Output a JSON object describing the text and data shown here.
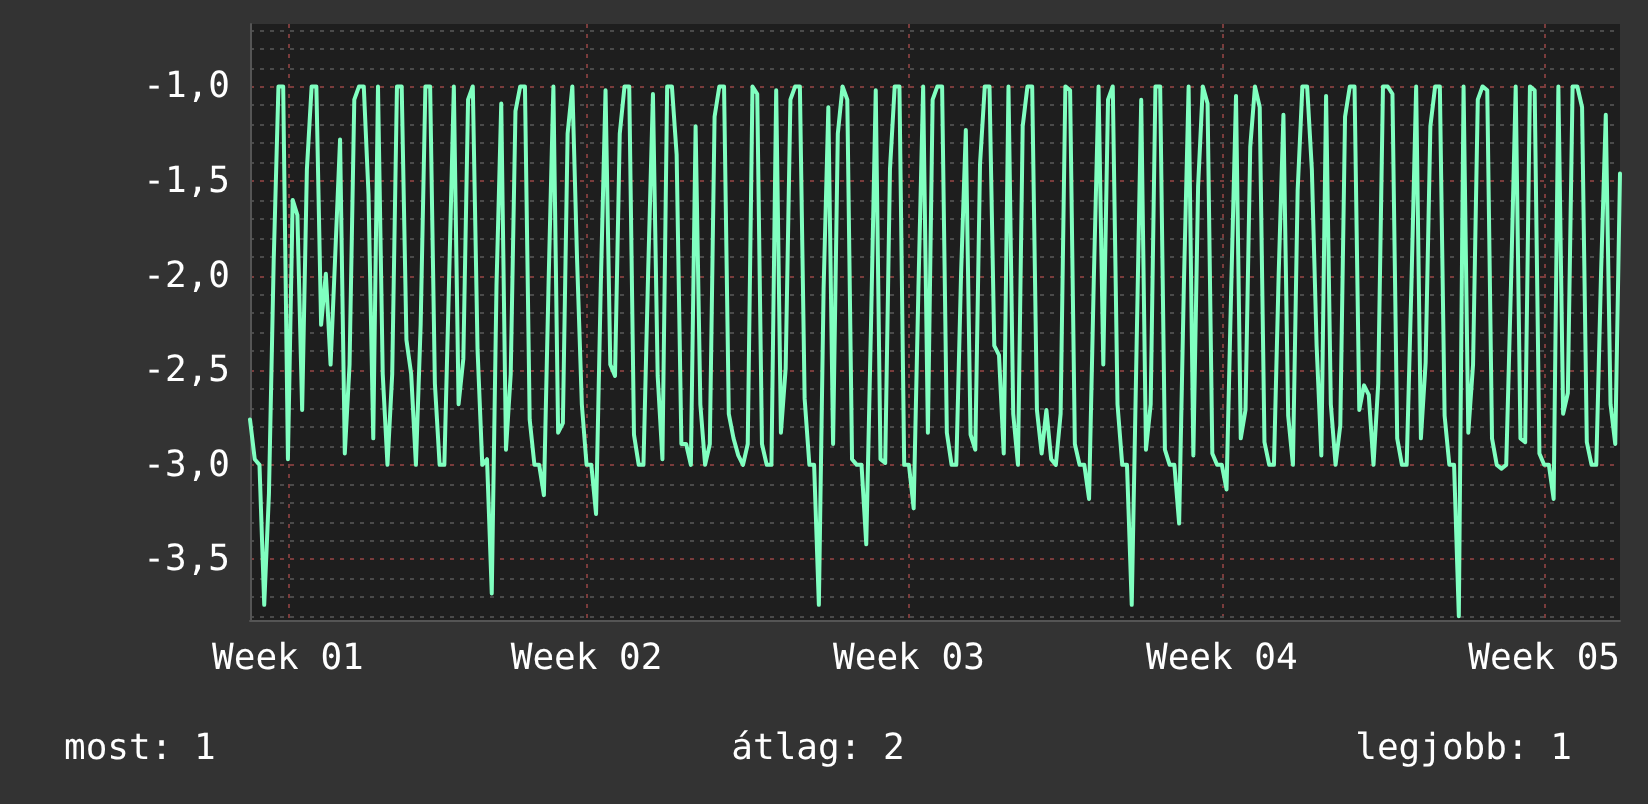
{
  "chart_data": {
    "type": "line",
    "color": "#80ffc0",
    "grid": true,
    "marker": "none",
    "line_style": "solid",
    "ylim": [
      -3.82,
      -0.67
    ],
    "yticks": [
      {
        "value": -3.8,
        "label": null
      },
      {
        "value": -3.7,
        "label": null
      },
      {
        "value": -3.6,
        "label": null
      },
      {
        "value": -3.5,
        "label": "-3,5"
      },
      {
        "value": -3.4,
        "label": null
      },
      {
        "value": -3.3,
        "label": null
      },
      {
        "value": -3.2,
        "label": null
      },
      {
        "value": -3.1,
        "label": null
      },
      {
        "value": -3.0,
        "label": "-3,0"
      },
      {
        "value": -2.9,
        "label": null
      },
      {
        "value": -2.8,
        "label": null
      },
      {
        "value": -2.7,
        "label": null
      },
      {
        "value": -2.6,
        "label": null
      },
      {
        "value": -2.5,
        "label": "-2,5"
      },
      {
        "value": -2.4,
        "label": null
      },
      {
        "value": -2.3,
        "label": null
      },
      {
        "value": -2.2,
        "label": null
      },
      {
        "value": -2.1,
        "label": null
      },
      {
        "value": -2.0,
        "label": "-2,0"
      },
      {
        "value": -1.9,
        "label": null
      },
      {
        "value": -1.8,
        "label": null
      },
      {
        "value": -1.7,
        "label": null
      },
      {
        "value": -1.6,
        "label": null
      },
      {
        "value": -1.5,
        "label": "-1,5"
      },
      {
        "value": -1.4,
        "label": null
      },
      {
        "value": -1.3,
        "label": null
      },
      {
        "value": -1.2,
        "label": null
      },
      {
        "value": -1.1,
        "label": null
      },
      {
        "value": -1.0,
        "label": "-1,0"
      },
      {
        "value": -0.9,
        "label": null
      },
      {
        "value": -0.8,
        "label": null
      },
      {
        "value": -0.7,
        "label": null
      }
    ],
    "annotations": [
      "most: 1",
      "átlag: 2",
      "legjobb: 1"
    ],
    "categories": [
      null,
      null,
      null,
      null,
      null,
      null,
      null,
      null,
      "Week 01",
      null,
      null,
      null,
      null,
      null,
      null,
      null,
      null,
      null,
      null,
      null,
      null,
      null,
      null,
      null,
      null,
      null,
      null,
      null,
      null,
      null,
      null,
      null,
      null,
      null,
      null,
      null,
      null,
      null,
      null,
      null,
      null,
      null,
      null,
      null,
      null,
      null,
      null,
      null,
      null,
      null,
      null,
      null,
      null,
      null,
      null,
      null,
      null,
      null,
      null,
      null,
      null,
      null,
      null,
      null,
      null,
      null,
      null,
      null,
      null,
      null,
      null,
      "Week 02",
      null,
      null,
      null,
      null,
      null,
      null,
      null,
      null,
      null,
      null,
      null,
      null,
      null,
      null,
      null,
      null,
      null,
      null,
      null,
      null,
      null,
      null,
      null,
      null,
      null,
      null,
      null,
      null,
      null,
      null,
      null,
      null,
      null,
      null,
      null,
      null,
      null,
      null,
      null,
      null,
      null,
      null,
      null,
      null,
      null,
      null,
      null,
      null,
      null,
      null,
      null,
      null,
      null,
      null,
      null,
      null,
      null,
      null,
      null,
      null,
      null,
      null,
      null,
      null,
      null,
      null,
      null,
      "Week 03",
      null,
      null,
      null,
      null,
      null,
      null,
      null,
      null,
      null,
      null,
      null,
      null,
      null,
      null,
      null,
      null,
      null,
      null,
      null,
      null,
      null,
      null,
      null,
      null,
      null,
      null,
      null,
      null,
      null,
      null,
      null,
      null,
      null,
      null,
      null,
      null,
      null,
      null,
      null,
      null,
      null,
      null,
      null,
      null,
      null,
      null,
      null,
      null,
      null,
      null,
      null,
      null,
      null,
      null,
      null,
      null,
      null,
      null,
      null,
      null,
      null,
      null,
      null,
      null,
      null,
      "Week 04",
      null,
      null,
      null,
      null,
      null,
      null,
      null,
      null,
      null,
      null,
      null,
      null,
      null,
      null,
      null,
      null,
      null,
      null,
      null,
      null,
      null,
      null,
      null,
      null,
      null,
      null,
      null,
      null,
      null,
      null,
      null,
      null,
      null,
      null,
      null,
      null,
      null,
      null,
      null,
      null,
      null,
      null,
      null,
      null,
      null,
      null,
      null,
      null,
      null,
      null,
      null,
      null,
      null,
      null,
      null,
      null,
      null,
      null,
      null,
      null,
      null,
      null,
      null,
      null,
      null,
      null,
      null,
      "Week 05",
      null,
      null,
      null,
      null,
      null,
      null,
      null,
      null,
      null,
      null,
      null,
      null,
      null,
      null,
      null,
      null
    ],
    "values": [
      -2.76,
      -2.97,
      -3.0,
      -3.74,
      -3.15,
      -1.92,
      -1.0,
      -1.0,
      -2.97,
      -1.6,
      -1.68,
      -2.71,
      -1.44,
      -1.0,
      -1.0,
      -2.26,
      -1.99,
      -2.47,
      -1.88,
      -1.28,
      -2.94,
      -2.47,
      -1.07,
      -1.0,
      -1.0,
      -1.57,
      -2.86,
      -1.0,
      -2.52,
      -3.0,
      -2.52,
      -1.0,
      -1.0,
      -2.34,
      -2.52,
      -3.0,
      -2.26,
      -1.0,
      -1.0,
      -2.57,
      -3.0,
      -3.0,
      -2.02,
      -1.0,
      -2.68,
      -2.44,
      -1.07,
      -1.0,
      -2.39,
      -3.0,
      -2.97,
      -3.68,
      -2.05,
      -1.09,
      -2.92,
      -2.52,
      -1.13,
      -1.0,
      -1.0,
      -2.76,
      -3.0,
      -3.0,
      -3.16,
      -2.02,
      -1.0,
      -2.83,
      -2.78,
      -1.25,
      -1.0,
      -1.92,
      -2.68,
      -3.0,
      -3.0,
      -3.26,
      -2.05,
      -1.02,
      -2.47,
      -2.53,
      -1.25,
      -1.0,
      -1.0,
      -2.84,
      -3.0,
      -3.0,
      -1.97,
      -1.04,
      -2.53,
      -2.97,
      -1.0,
      -1.0,
      -1.36,
      -2.89,
      -2.89,
      -3.0,
      -1.21,
      -2.68,
      -3.0,
      -2.89,
      -1.16,
      -1.0,
      -1.0,
      -2.73,
      -2.86,
      -2.95,
      -3.0,
      -2.89,
      -1.0,
      -1.04,
      -2.89,
      -3.0,
      -3.0,
      -1.02,
      -2.83,
      -2.49,
      -1.07,
      -1.0,
      -1.0,
      -2.65,
      -3.0,
      -3.0,
      -3.74,
      -2.07,
      -1.11,
      -2.89,
      -1.25,
      -1.0,
      -1.07,
      -2.97,
      -3.0,
      -3.0,
      -3.42,
      -2.26,
      -1.02,
      -2.97,
      -2.99,
      -1.44,
      -1.0,
      -1.0,
      -3.0,
      -3.0,
      -3.23,
      -2.07,
      -1.0,
      -2.83,
      -1.07,
      -1.0,
      -1.0,
      -2.83,
      -3.0,
      -3.0,
      -1.99,
      -1.23,
      -2.84,
      -2.92,
      -1.41,
      -1.0,
      -1.0,
      -2.37,
      -2.42,
      -2.94,
      -1.0,
      -2.73,
      -3.0,
      -1.21,
      -1.0,
      -1.0,
      -2.71,
      -2.94,
      -2.71,
      -2.97,
      -3.0,
      -2.73,
      -1.0,
      -1.02,
      -2.89,
      -3.0,
      -3.0,
      -3.18,
      -2.02,
      -1.0,
      -2.47,
      -1.07,
      -1.0,
      -2.68,
      -3.0,
      -3.0,
      -3.74,
      -2.41,
      -1.07,
      -2.92,
      -2.68,
      -1.0,
      -1.0,
      -2.92,
      -3.0,
      -3.0,
      -3.31,
      -2.05,
      -1.0,
      -2.95,
      -1.53,
      -1.0,
      -1.09,
      -2.94,
      -3.0,
      -3.0,
      -3.13,
      -2.05,
      -1.05,
      -2.86,
      -2.71,
      -1.32,
      -1.0,
      -1.11,
      -2.88,
      -3.0,
      -3.0,
      -1.99,
      -1.15,
      -2.74,
      -3.0,
      -1.55,
      -1.0,
      -1.0,
      -1.44,
      -2.37,
      -2.95,
      -1.05,
      -2.68,
      -3.0,
      -2.79,
      -1.16,
      -1.0,
      -1.0,
      -2.71,
      -2.58,
      -2.63,
      -3.0,
      -2.57,
      -1.0,
      -1.0,
      -1.04,
      -2.86,
      -3.0,
      -3.0,
      -2.05,
      -1.0,
      -2.86,
      -2.46,
      -1.21,
      -1.0,
      -1.0,
      -2.74,
      -3.0,
      -3.0,
      -3.8,
      -1.0,
      -2.83,
      -2.47,
      -1.07,
      -1.0,
      -1.02,
      -2.86,
      -3.0,
      -3.02,
      -3.0,
      -2.05,
      -1.0,
      -2.86,
      -2.88,
      -1.0,
      -1.02,
      -2.94,
      -3.0,
      -3.0,
      -3.18,
      -1.0,
      -2.73,
      -2.62,
      -1.0,
      -1.0,
      -1.11,
      -2.88,
      -3.0,
      -3.0,
      -1.99,
      -1.15,
      -2.68,
      -2.89,
      -1.46
    ]
  }
}
